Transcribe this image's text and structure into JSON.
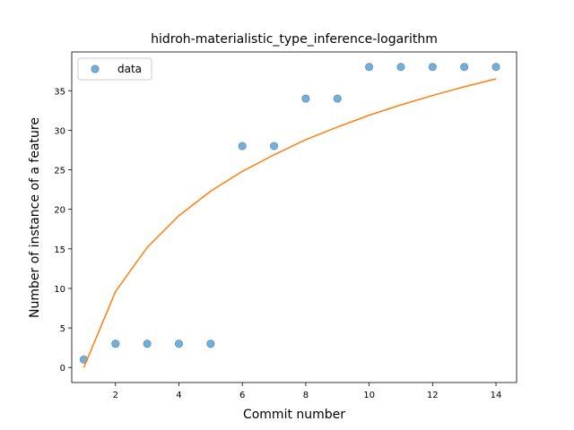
{
  "chart_data": {
    "type": "scatter",
    "title": "hidroh-materialistic_type_inference-logarithm",
    "xlabel": "Commit number",
    "ylabel": "Number of instance of a feature",
    "xlim": [
      0.62,
      14.65
    ],
    "ylim": [
      -1.9,
      39.9
    ],
    "xticks": [
      2,
      4,
      6,
      8,
      10,
      12,
      14
    ],
    "yticks": [
      0,
      5,
      10,
      15,
      20,
      25,
      30,
      35
    ],
    "grid": false,
    "legend_position": "upper-left",
    "series": [
      {
        "name": "data",
        "kind": "scatter",
        "color": "#1f77b4",
        "x": [
          1,
          2,
          3,
          4,
          5,
          6,
          7,
          8,
          9,
          10,
          11,
          12,
          13,
          14
        ],
        "y": [
          1,
          3,
          3,
          3,
          3,
          28,
          28,
          34,
          34,
          38,
          38,
          38,
          38,
          38
        ]
      },
      {
        "kind": "line",
        "color": "#ff7f0e",
        "x": [
          1,
          2,
          3,
          4,
          5,
          6,
          7,
          8,
          9,
          10,
          11,
          12,
          13,
          14
        ],
        "y": [
          0.0,
          9.6,
          15.2,
          19.2,
          22.3,
          24.8,
          26.9,
          28.8,
          30.4,
          31.9,
          33.2,
          34.4,
          35.5,
          36.5
        ]
      }
    ]
  }
}
